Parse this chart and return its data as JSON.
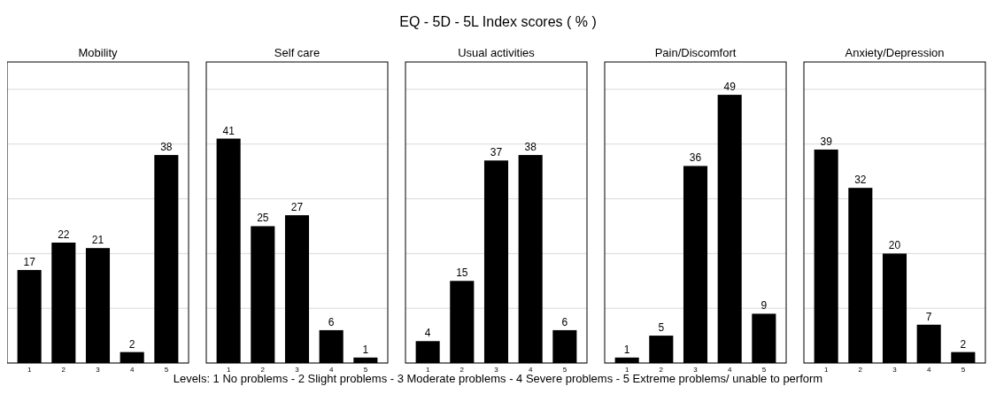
{
  "chart_data": [
    {
      "type": "bar",
      "title": "Mobility",
      "categories": [
        "1",
        "2",
        "3",
        "4",
        "5"
      ],
      "values": [
        17,
        22,
        21,
        2,
        38
      ],
      "color": "#000000",
      "ylim": [
        0,
        55
      ],
      "yticks": [
        {
          "value": 0,
          "label": null
        },
        {
          "value": 10,
          "label": null
        },
        {
          "value": 20,
          "label": null
        },
        {
          "value": 30,
          "label": null
        },
        {
          "value": 40,
          "label": null
        },
        {
          "value": 50,
          "label": null
        }
      ],
      "grid": "y",
      "data_labels": true,
      "tick_labels": "x",
      "annotations": [
        "EQ - 5D - 5L Index scores ( % )",
        "Levels: 1 No problems - 2 Slight problems - 3 Moderate problems - 4 Severe problems - 5 Extreme problems/ unable to perform"
      ]
    },
    {
      "type": "bar",
      "title": "Self care",
      "categories": [
        "1",
        "2",
        "3",
        "4",
        "5"
      ],
      "values": [
        41,
        25,
        27,
        6,
        1
      ],
      "color": "#000000",
      "ylim": [
        0,
        55
      ],
      "yticks": [
        {
          "value": 0,
          "label": null
        },
        {
          "value": 10,
          "label": null
        },
        {
          "value": 20,
          "label": null
        },
        {
          "value": 30,
          "label": null
        },
        {
          "value": 40,
          "label": null
        },
        {
          "value": 50,
          "label": null
        }
      ],
      "grid": "y",
      "data_labels": true,
      "tick_labels": "x"
    },
    {
      "type": "bar",
      "title": "Usual activities",
      "categories": [
        "1",
        "2",
        "3",
        "4",
        "5"
      ],
      "values": [
        4,
        15,
        37,
        38,
        6
      ],
      "color": "#000000",
      "ylim": [
        0,
        55
      ],
      "yticks": [
        {
          "value": 0,
          "label": null
        },
        {
          "value": 10,
          "label": null
        },
        {
          "value": 20,
          "label": null
        },
        {
          "value": 30,
          "label": null
        },
        {
          "value": 40,
          "label": null
        },
        {
          "value": 50,
          "label": null
        }
      ],
      "grid": "y",
      "data_labels": true,
      "tick_labels": "x"
    },
    {
      "type": "bar",
      "title": "Pain/Discomfort",
      "categories": [
        "1",
        "2",
        "3",
        "4",
        "5"
      ],
      "values": [
        1,
        5,
        36,
        49,
        9
      ],
      "color": "#000000",
      "ylim": [
        0,
        55
      ],
      "yticks": [
        {
          "value": 0,
          "label": null
        },
        {
          "value": 10,
          "label": null
        },
        {
          "value": 20,
          "label": null
        },
        {
          "value": 30,
          "label": null
        },
        {
          "value": 40,
          "label": null
        },
        {
          "value": 50,
          "label": null
        }
      ],
      "grid": "y",
      "data_labels": true,
      "tick_labels": "x"
    },
    {
      "type": "bar",
      "title": "Anxiety/Depression",
      "categories": [
        "1",
        "2",
        "3",
        "4",
        "5"
      ],
      "values": [
        39,
        32,
        20,
        7,
        2
      ],
      "color": "#000000",
      "ylim": [
        0,
        55
      ],
      "yticks": [
        {
          "value": 0,
          "label": null
        },
        {
          "value": 10,
          "label": null
        },
        {
          "value": 20,
          "label": null
        },
        {
          "value": 30,
          "label": null
        },
        {
          "value": 40,
          "label": null
        },
        {
          "value": 50,
          "label": null
        }
      ],
      "grid": "y",
      "data_labels": true,
      "tick_labels": "x"
    }
  ]
}
